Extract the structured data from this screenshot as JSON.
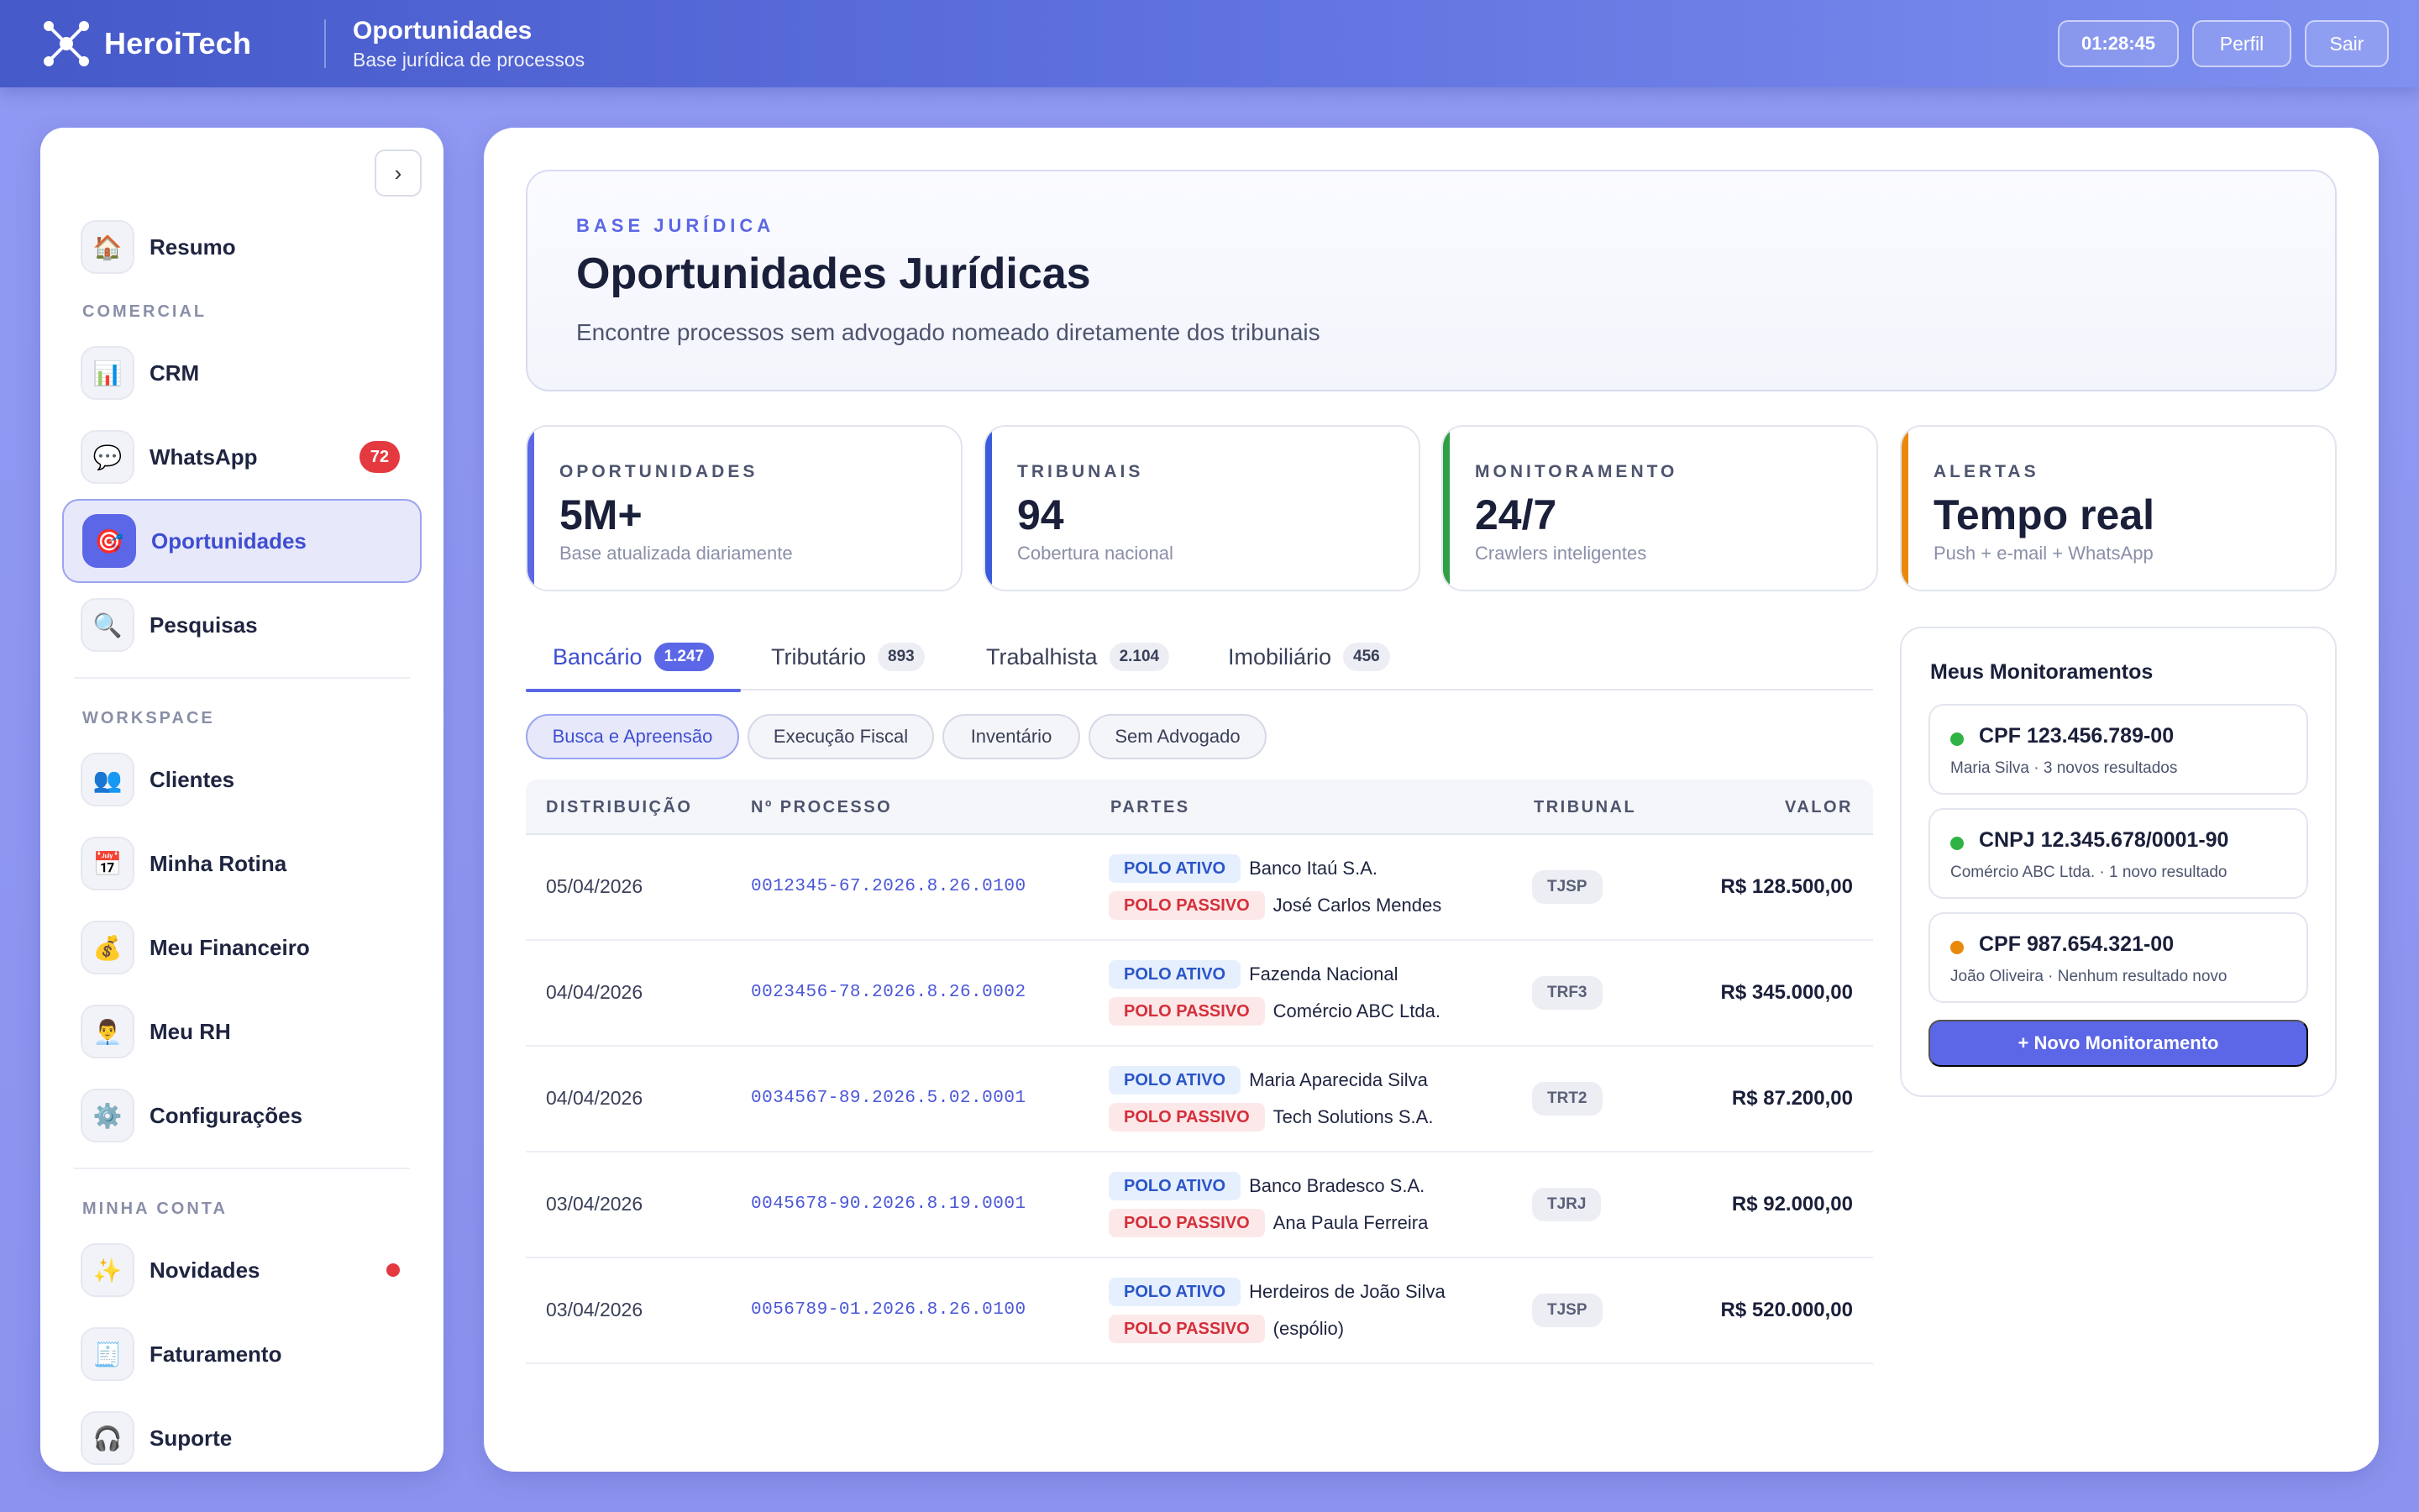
{
  "topbar": {
    "brand": "HeroiTech",
    "page_title": "Oportunidades",
    "page_subtitle": "Base jurídica de processos",
    "clock": "01:28:45",
    "profile_label": "Perfil",
    "logout_label": "Sair"
  },
  "sidebar": {
    "collapse_glyph": "›",
    "items": {
      "resumo": {
        "label": "Resumo",
        "icon": "🏠"
      },
      "crm": {
        "label": "CRM",
        "icon": "📊"
      },
      "whatsapp": {
        "label": "WhatsApp",
        "icon": "💬",
        "badge": "72"
      },
      "oportunidades": {
        "label": "Oportunidades",
        "icon": "🎯"
      },
      "pesquisas": {
        "label": "Pesquisas",
        "icon": "🔍"
      },
      "clientes": {
        "label": "Clientes",
        "icon": "👥"
      },
      "rotina": {
        "label": "Minha Rotina",
        "icon": "📅"
      },
      "financeiro": {
        "label": "Meu Financeiro",
        "icon": "💰"
      },
      "rh": {
        "label": "Meu RH",
        "icon": "👨‍💼"
      },
      "config": {
        "label": "Configurações",
        "icon": "⚙️"
      },
      "novidades": {
        "label": "Novidades",
        "icon": "✨"
      },
      "faturamento": {
        "label": "Faturamento",
        "icon": "🧾"
      },
      "suporte": {
        "label": "Suporte",
        "icon": "🎧"
      }
    },
    "sections": {
      "comercial": "COMERCIAL",
      "workspace": "WORKSPACE",
      "conta": "MINHA CONTA"
    }
  },
  "hero": {
    "eyebrow": "BASE JURÍDICA",
    "title": "Oportunidades Jurídicas",
    "subtitle": "Encontre processos sem advogado nomeado diretamente dos tribunais"
  },
  "stats": [
    {
      "label": "OPORTUNIDADES",
      "value": "5M+",
      "desc": "Base atualizada diariamente",
      "color": "#5b67e6"
    },
    {
      "label": "TRIBUNAIS",
      "value": "94",
      "desc": "Cobertura nacional",
      "color": "#3b5bdb"
    },
    {
      "label": "MONITORAMENTO",
      "value": "24/7",
      "desc": "Crawlers inteligentes",
      "color": "#2f9e44"
    },
    {
      "label": "ALERTAS",
      "value": "Tempo real",
      "desc": "Push + e-mail + WhatsApp",
      "color": "#e8890c"
    }
  ],
  "tabs": [
    {
      "label": "Bancário",
      "count": "1.247"
    },
    {
      "label": "Tributário",
      "count": "893"
    },
    {
      "label": "Trabalhista",
      "count": "2.104"
    },
    {
      "label": "Imobiliário",
      "count": "456"
    }
  ],
  "filters": [
    "Busca e Apreensão",
    "Execução Fiscal",
    "Inventário",
    "Sem Advogado"
  ],
  "table": {
    "headers": {
      "date": "DISTRIBUIÇÃO",
      "process": "Nº PROCESSO",
      "parties": "PARTES",
      "court": "TRIBUNAL",
      "value": "VALOR"
    },
    "polo_ativo": "POLO ATIVO",
    "polo_passivo": "POLO PASSIVO",
    "rows": [
      {
        "date": "05/04/2026",
        "process": "0012345-67.2026.8.26.0100",
        "ativo": "Banco Itaú S.A.",
        "passivo": "José Carlos Mendes",
        "court": "TJSP",
        "value": "R$ 128.500,00"
      },
      {
        "date": "04/04/2026",
        "process": "0023456-78.2026.8.26.0002",
        "ativo": "Fazenda Nacional",
        "passivo": "Comércio ABC Ltda.",
        "court": "TRF3",
        "value": "R$ 345.000,00"
      },
      {
        "date": "04/04/2026",
        "process": "0034567-89.2026.5.02.0001",
        "ativo": "Maria Aparecida Silva",
        "passivo": "Tech Solutions S.A.",
        "court": "TRT2",
        "value": "R$ 87.200,00"
      },
      {
        "date": "03/04/2026",
        "process": "0045678-90.2026.8.19.0001",
        "ativo": "Banco Bradesco S.A.",
        "passivo": "Ana Paula Ferreira",
        "court": "TJRJ",
        "value": "R$ 92.000,00"
      },
      {
        "date": "03/04/2026",
        "process": "0056789-01.2026.8.26.0100",
        "ativo": "Herdeiros de João Silva",
        "passivo": "(espólio)",
        "court": "TJSP",
        "value": "R$ 520.000,00"
      }
    ]
  },
  "monitor": {
    "title": "Meus Monitoramentos",
    "items": [
      {
        "title": "CPF 123.456.789-00",
        "sub": "Maria Silva · 3 novos resultados",
        "color": "#2fb344"
      },
      {
        "title": "CNPJ 12.345.678/0001-90",
        "sub": "Comércio ABC Ltda. · 1 novo resultado",
        "color": "#2fb344"
      },
      {
        "title": "CPF 987.654.321-00",
        "sub": "João Oliveira · Nenhum resultado novo",
        "color": "#e8890c"
      }
    ],
    "button": "+ Novo Monitoramento"
  }
}
